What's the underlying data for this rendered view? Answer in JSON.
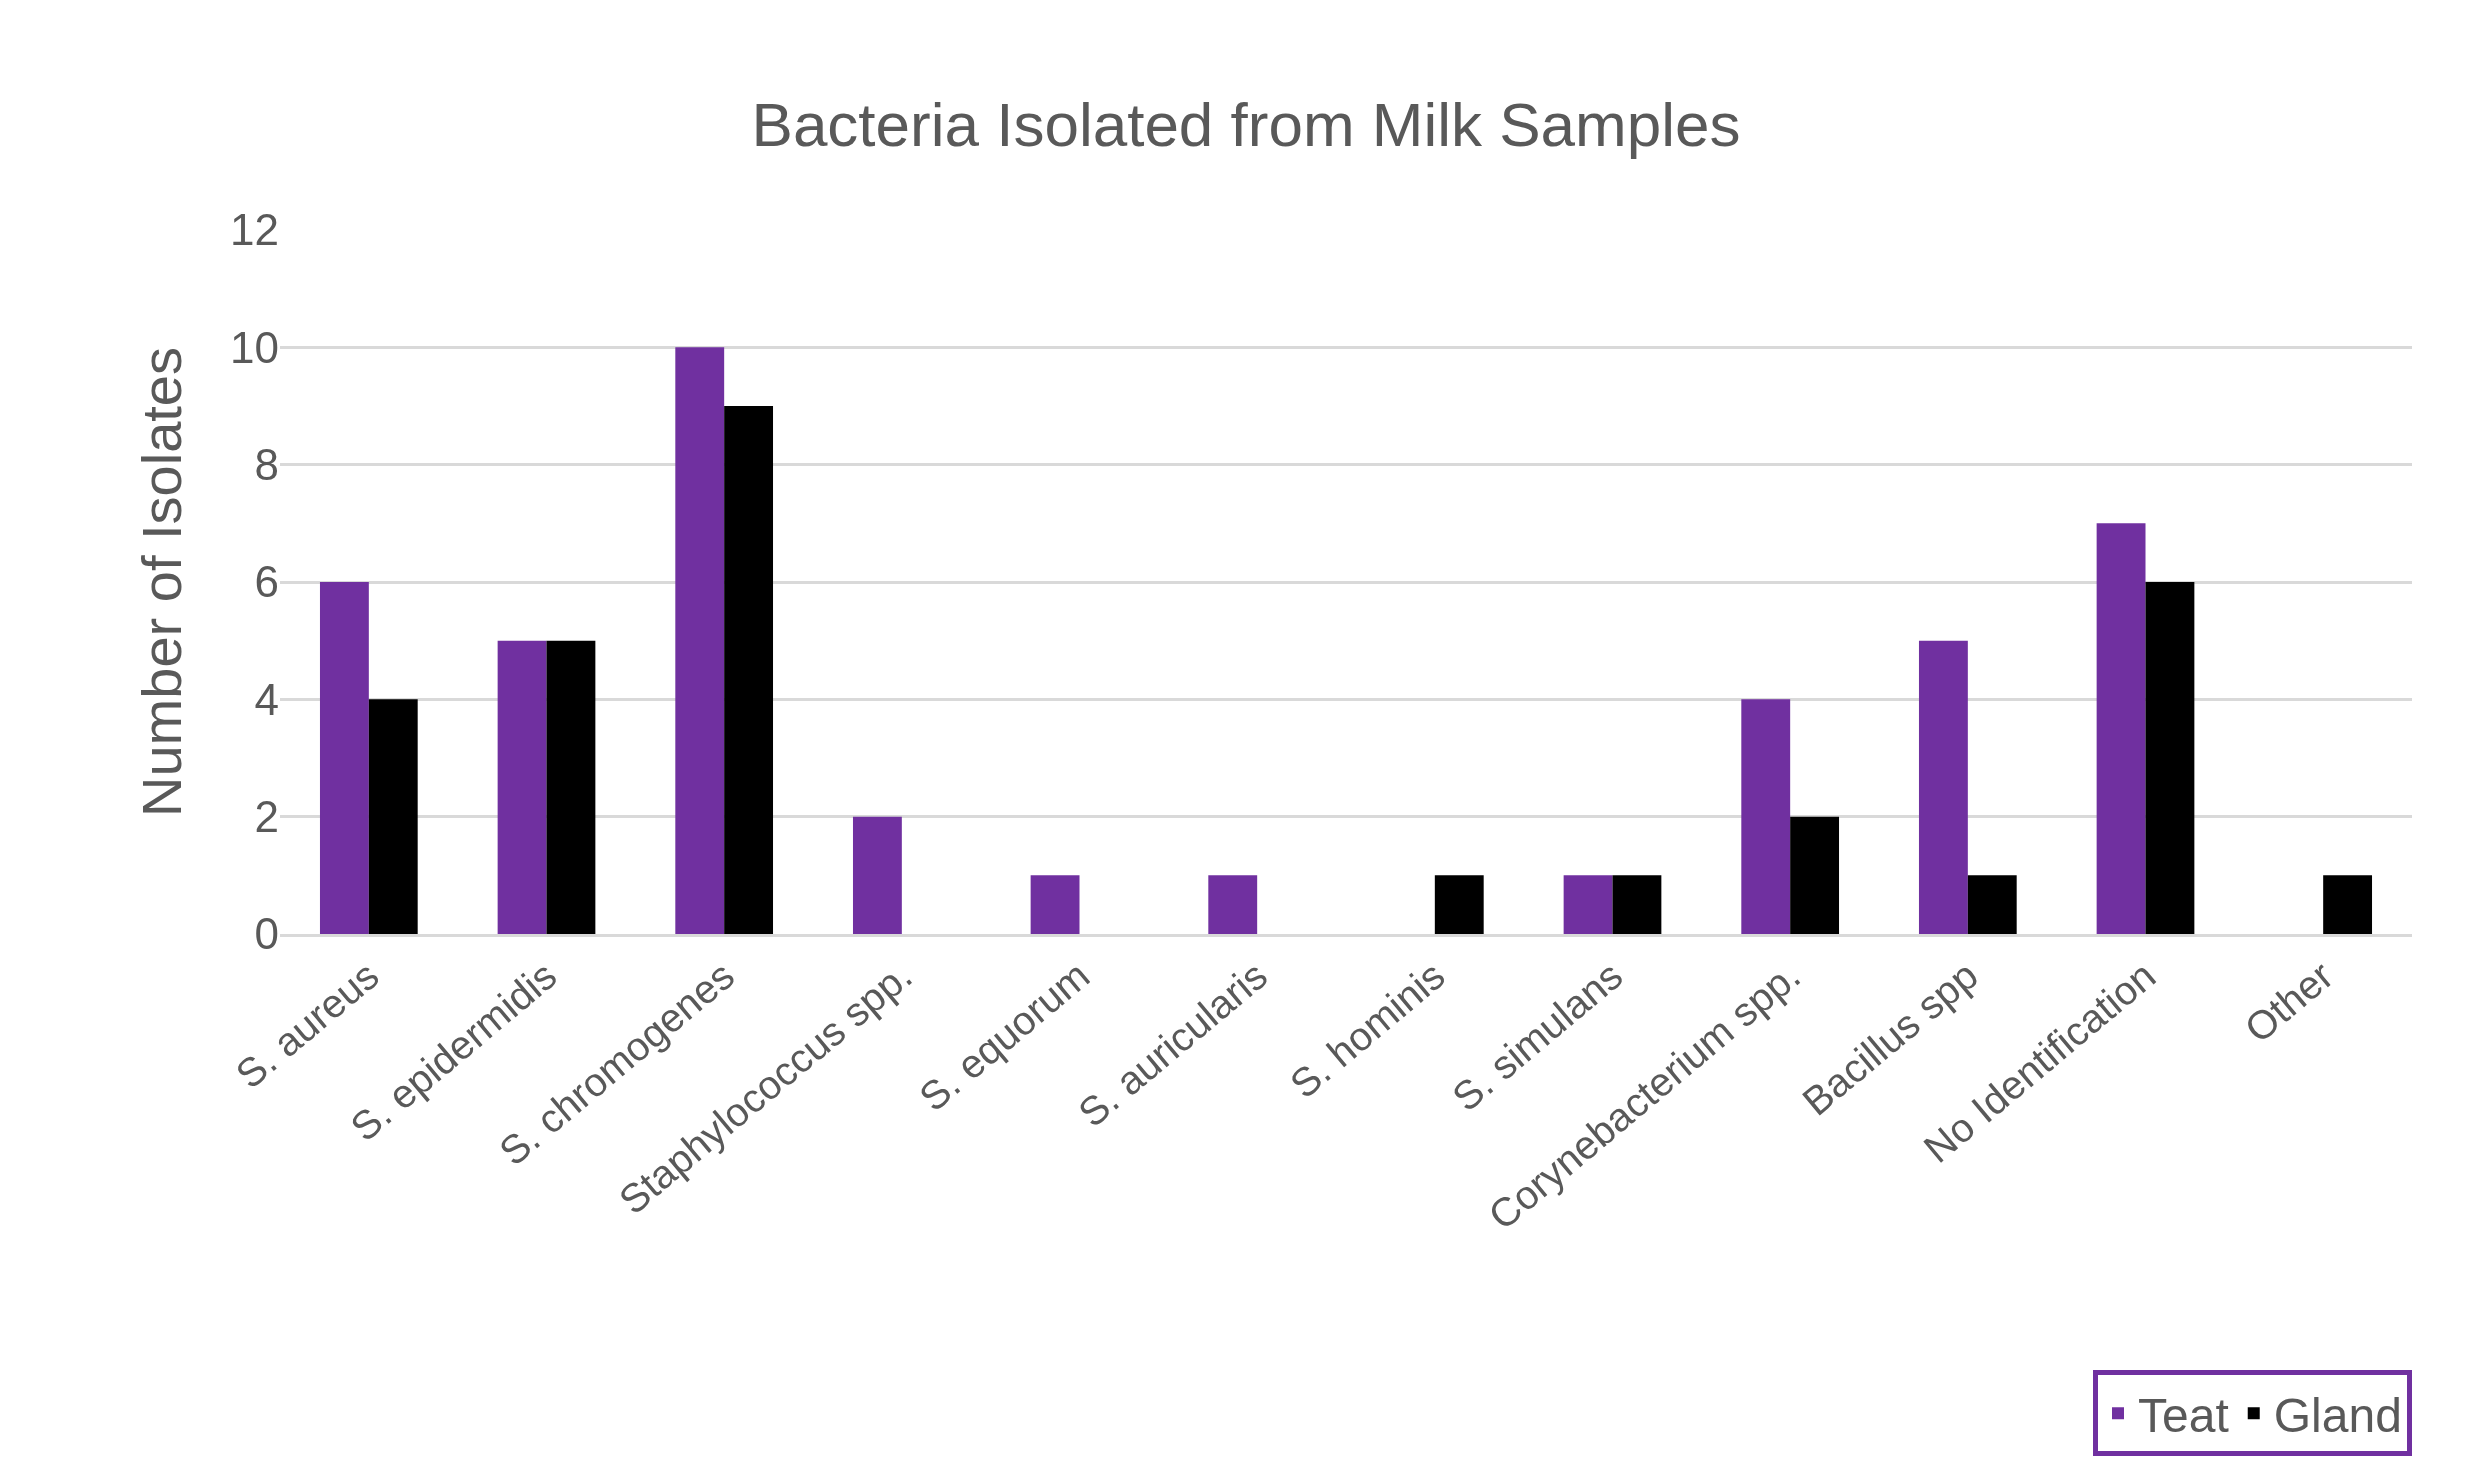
{
  "chart_data": {
    "type": "bar",
    "title": "Bacteria Isolated from Milk Samples",
    "ylabel": "Number of Isolates",
    "categories": [
      "S. aureus",
      "S. epidermidis",
      "S. chromogenes",
      "Staphylococcus spp.",
      "S. equorum",
      "S. auricularis",
      "S. hominis",
      "S. simulans",
      "Corynebacterium spp.",
      "Bacillus spp",
      "No Identification",
      "Other"
    ],
    "series": [
      {
        "name": "Teat",
        "color": "#7030a0",
        "values": [
          6,
          5,
          10,
          2,
          1,
          1,
          0,
          1,
          4,
          5,
          7,
          0
        ]
      },
      {
        "name": "Gland",
        "color": "#000000",
        "values": [
          4,
          5,
          9,
          0,
          0,
          0,
          1,
          1,
          2,
          1,
          6,
          1
        ]
      }
    ],
    "ylim": [
      0,
      12
    ],
    "yticks": [
      0,
      2,
      4,
      6,
      8,
      10,
      12
    ],
    "grid": "y",
    "legend": "bottom right"
  }
}
